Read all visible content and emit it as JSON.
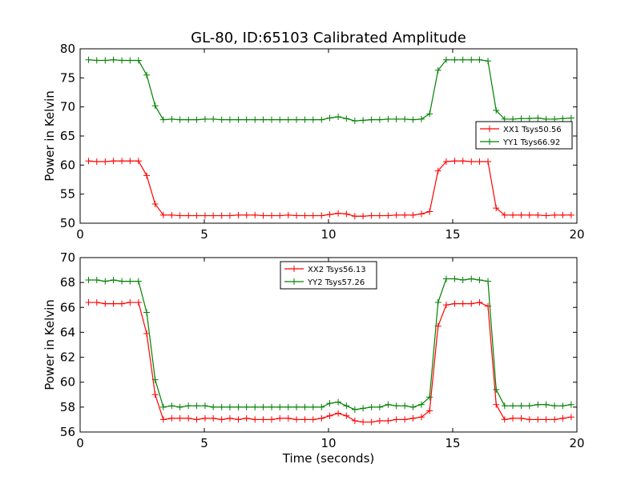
{
  "figure": {
    "title": "GL-80, ID:65103 Calibrated Amplitude",
    "xlabel": "Time (seconds)"
  },
  "chart_data": [
    {
      "type": "line",
      "ylabel": "Power in Kelvin",
      "xlim": [
        0,
        20
      ],
      "ylim": [
        50,
        80
      ],
      "xticks": [
        0,
        5,
        10,
        15,
        20
      ],
      "yticks": [
        50,
        55,
        60,
        65,
        70,
        75,
        80
      ],
      "grid": false,
      "legend": "center-right",
      "x": [
        0.34,
        0.67,
        1.01,
        1.34,
        1.68,
        2.01,
        2.35,
        2.68,
        3.02,
        3.35,
        3.69,
        4.02,
        4.36,
        4.69,
        5.03,
        5.36,
        5.7,
        6.03,
        6.37,
        6.7,
        7.04,
        7.37,
        7.71,
        8.04,
        8.38,
        8.71,
        9.05,
        9.38,
        9.72,
        10.05,
        10.39,
        10.72,
        11.06,
        11.39,
        11.73,
        12.06,
        12.4,
        12.73,
        13.07,
        13.4,
        13.74,
        14.07,
        14.41,
        14.74,
        15.08,
        15.41,
        15.75,
        16.08,
        16.42,
        16.75,
        17.09,
        17.42,
        17.76,
        18.09,
        18.43,
        18.76,
        19.1,
        19.43,
        19.77
      ],
      "series": [
        {
          "name": "XX1 Tsys50.56",
          "color": "#ff0000",
          "values": [
            60.7,
            60.6,
            60.6,
            60.7,
            60.7,
            60.7,
            60.7,
            58.2,
            53.3,
            51.4,
            51.4,
            51.3,
            51.3,
            51.3,
            51.3,
            51.3,
            51.3,
            51.3,
            51.4,
            51.4,
            51.4,
            51.3,
            51.3,
            51.3,
            51.4,
            51.3,
            51.3,
            51.3,
            51.3,
            51.5,
            51.7,
            51.6,
            51.2,
            51.2,
            51.3,
            51.3,
            51.3,
            51.4,
            51.4,
            51.4,
            51.6,
            52.0,
            59.0,
            60.6,
            60.7,
            60.7,
            60.6,
            60.6,
            60.6,
            52.6,
            51.4,
            51.4,
            51.4,
            51.4,
            51.4,
            51.3,
            51.4,
            51.4,
            51.4
          ]
        },
        {
          "name": "YY1 Tsys66.92",
          "color": "#008000",
          "values": [
            78.1,
            78.0,
            78.0,
            78.1,
            78.0,
            78.0,
            78.0,
            75.5,
            70.2,
            67.8,
            67.9,
            67.8,
            67.8,
            67.8,
            67.9,
            67.9,
            67.8,
            67.8,
            67.8,
            67.8,
            67.8,
            67.8,
            67.8,
            67.8,
            67.8,
            67.8,
            67.8,
            67.8,
            67.8,
            68.1,
            68.3,
            68.0,
            67.6,
            67.7,
            67.8,
            67.8,
            67.9,
            67.9,
            67.9,
            67.8,
            67.9,
            68.8,
            76.3,
            78.1,
            78.1,
            78.1,
            78.1,
            78.1,
            77.9,
            69.4,
            67.9,
            67.9,
            68.0,
            68.0,
            68.1,
            67.9,
            67.9,
            68.0,
            68.1
          ]
        }
      ]
    },
    {
      "type": "line",
      "ylabel": "Power in Kelvin",
      "xlim": [
        0,
        20
      ],
      "ylim": [
        56,
        70
      ],
      "xticks": [
        0,
        5,
        10,
        15,
        20
      ],
      "yticks": [
        56,
        58,
        60,
        62,
        64,
        66,
        68,
        70
      ],
      "grid": false,
      "legend": "top-center",
      "x": [
        0.34,
        0.67,
        1.01,
        1.34,
        1.68,
        2.01,
        2.35,
        2.68,
        3.02,
        3.35,
        3.69,
        4.02,
        4.36,
        4.69,
        5.03,
        5.36,
        5.7,
        6.03,
        6.37,
        6.7,
        7.04,
        7.37,
        7.71,
        8.04,
        8.38,
        8.71,
        9.05,
        9.38,
        9.72,
        10.05,
        10.39,
        10.72,
        11.06,
        11.39,
        11.73,
        12.06,
        12.4,
        12.73,
        13.07,
        13.4,
        13.74,
        14.07,
        14.41,
        14.74,
        15.08,
        15.41,
        15.75,
        16.08,
        16.42,
        16.75,
        17.09,
        17.42,
        17.76,
        18.09,
        18.43,
        18.76,
        19.1,
        19.43,
        19.77
      ],
      "series": [
        {
          "name": "XX2 Tsys56.13",
          "color": "#ff0000",
          "values": [
            66.4,
            66.4,
            66.3,
            66.3,
            66.3,
            66.4,
            66.4,
            63.9,
            59.0,
            57.0,
            57.1,
            57.1,
            57.1,
            57.0,
            57.1,
            57.1,
            57.0,
            57.1,
            57.0,
            57.1,
            57.0,
            57.0,
            57.0,
            57.1,
            57.1,
            57.0,
            57.0,
            57.0,
            57.1,
            57.3,
            57.5,
            57.3,
            56.9,
            56.8,
            56.8,
            56.9,
            56.9,
            57.0,
            57.0,
            57.1,
            57.2,
            57.7,
            64.5,
            66.2,
            66.3,
            66.3,
            66.3,
            66.4,
            66.1,
            58.2,
            57.0,
            57.1,
            57.1,
            57.0,
            57.0,
            57.0,
            57.0,
            57.1,
            57.2
          ]
        },
        {
          "name": "YY2 Tsys57.26",
          "color": "#008000",
          "values": [
            68.2,
            68.2,
            68.1,
            68.2,
            68.1,
            68.1,
            68.1,
            65.6,
            60.2,
            58.0,
            58.1,
            58.0,
            58.1,
            58.1,
            58.1,
            58.0,
            58.0,
            58.0,
            58.0,
            58.0,
            58.0,
            58.0,
            58.0,
            58.0,
            58.0,
            58.0,
            58.0,
            58.0,
            58.0,
            58.3,
            58.4,
            58.1,
            57.8,
            57.9,
            58.0,
            58.0,
            58.2,
            58.1,
            58.1,
            58.0,
            58.2,
            58.8,
            66.4,
            68.3,
            68.3,
            68.2,
            68.3,
            68.2,
            68.1,
            59.4,
            58.1,
            58.1,
            58.1,
            58.1,
            58.2,
            58.2,
            58.1,
            58.1,
            58.2
          ]
        }
      ]
    }
  ]
}
